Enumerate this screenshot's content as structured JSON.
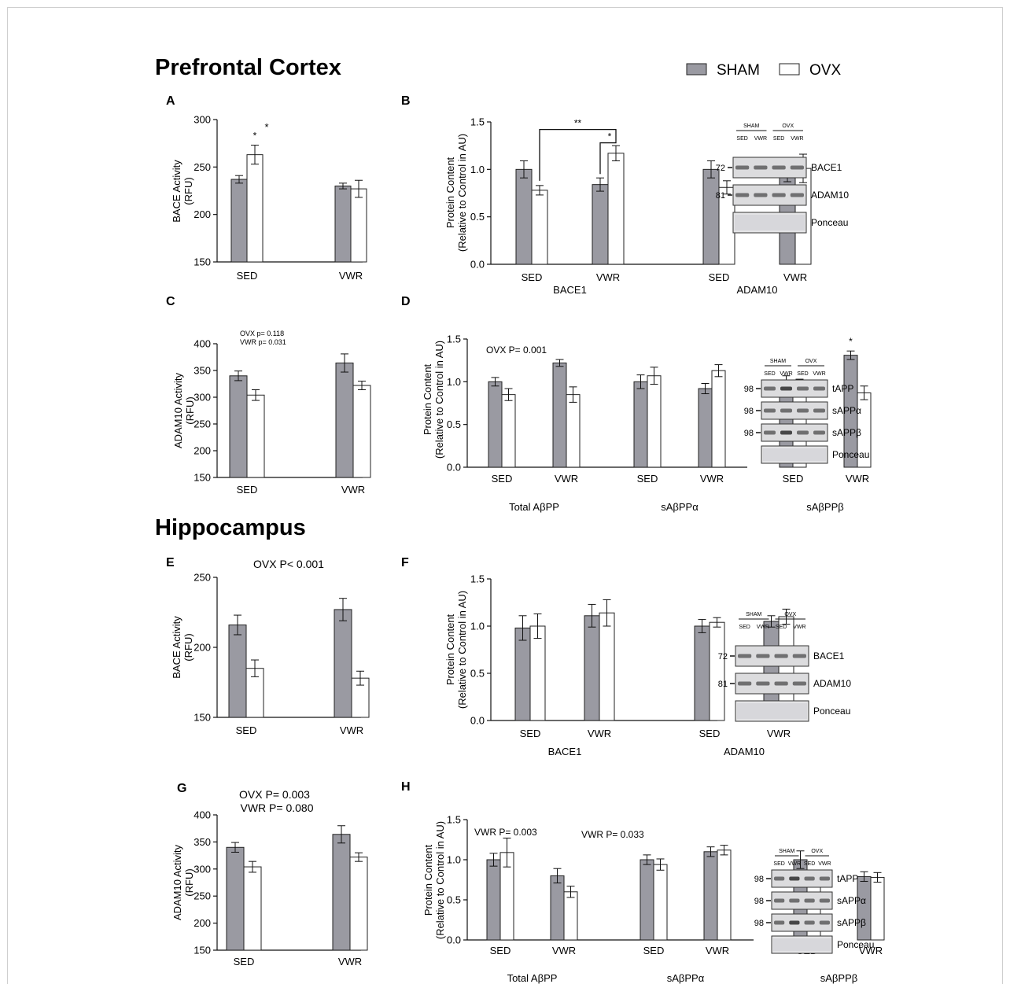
{
  "figure": {
    "sections": [
      {
        "id": "pfc",
        "title": "Prefrontal Cortex"
      },
      {
        "id": "hip",
        "title": "Hippocampus"
      }
    ],
    "legend": [
      {
        "name": "SHAM",
        "color": "#9a9aa2"
      },
      {
        "name": "OVX",
        "color": "#ffffff"
      }
    ],
    "colors": {
      "sham": "#9a9aa2",
      "ovx": "#ffffff",
      "stroke": "#222222"
    }
  },
  "chart_data": [
    {
      "panel": "A",
      "type": "bar",
      "ylabel": [
        "BACE Activity",
        "(RFU)"
      ],
      "ylim": [
        150,
        300
      ],
      "yticks": [
        150,
        200,
        250,
        300
      ],
      "groups": [
        {
          "label": "SED",
          "sham": {
            "v": 237,
            "e": 4
          },
          "ovx": {
            "v": 263,
            "e": 10
          }
        },
        {
          "label": "VWR",
          "sham": {
            "v": 230,
            "e": 3
          },
          "ovx": {
            "v": 227,
            "e": 9
          }
        }
      ],
      "annotations": [
        "*"
      ],
      "significance": [
        {
          "label": "*",
          "group": 0,
          "series": "ovx"
        }
      ]
    },
    {
      "panel": "B",
      "type": "bar",
      "ylabel": [
        "Protein Content",
        "(Relative to Control in AU)"
      ],
      "ylim": [
        0,
        1.5
      ],
      "yticks": [
        0.0,
        0.5,
        1.0,
        1.5
      ],
      "groups": [
        {
          "label": "SED",
          "sham": {
            "v": 1.0,
            "e": 0.09
          },
          "ovx": {
            "v": 0.78,
            "e": 0.05
          }
        },
        {
          "label": "VWR",
          "sham": {
            "v": 0.84,
            "e": 0.07
          },
          "ovx": {
            "v": 1.17,
            "e": 0.08
          }
        },
        {
          "label": "SED",
          "sham": {
            "v": 1.0,
            "e": 0.09
          },
          "ovx": {
            "v": 0.81,
            "e": 0.07
          }
        },
        {
          "label": "VWR",
          "sham": {
            "v": 0.96,
            "e": 0.09
          },
          "ovx": {
            "v": 1.01,
            "e": 0.15
          }
        }
      ],
      "supergroups": [
        "BACE1",
        "ADAM10"
      ],
      "brackets": [
        "**",
        "*"
      ],
      "blot": {
        "header": [
          "SHAM",
          "OVX"
        ],
        "lanes": [
          "SED",
          "VWR",
          "SED",
          "VWR"
        ],
        "bands": [
          {
            "name": "BACE1",
            "mw": "72"
          },
          {
            "name": "ADAM10",
            "mw": "81"
          },
          {
            "name": "Ponceau",
            "mw": ""
          }
        ]
      }
    },
    {
      "panel": "C",
      "type": "bar",
      "ylabel": [
        "ADAM10 Activity",
        "(RFU)"
      ],
      "ylim": [
        150,
        400
      ],
      "yticks": [
        150,
        200,
        250,
        300,
        350,
        400
      ],
      "groups": [
        {
          "label": "SED",
          "sham": {
            "v": 340,
            "e": 9
          },
          "ovx": {
            "v": 304,
            "e": 10
          }
        },
        {
          "label": "VWR",
          "sham": {
            "v": 364,
            "e": 17
          },
          "ovx": {
            "v": 322,
            "e": 8
          }
        }
      ],
      "annotations": [
        "OVX p= 0.118",
        "VWR p= 0.031"
      ]
    },
    {
      "panel": "D",
      "type": "bar",
      "ylabel": [
        "Protein Content",
        "(Relative to Control in AU)"
      ],
      "ylim": [
        0,
        1.5
      ],
      "yticks": [
        0.0,
        0.5,
        1.0,
        1.5
      ],
      "groups": [
        {
          "label": "SED",
          "sham": {
            "v": 1.0,
            "e": 0.05
          },
          "ovx": {
            "v": 0.85,
            "e": 0.07
          }
        },
        {
          "label": "VWR",
          "sham": {
            "v": 1.22,
            "e": 0.04
          },
          "ovx": {
            "v": 0.85,
            "e": 0.09
          }
        },
        {
          "label": "SED",
          "sham": {
            "v": 1.0,
            "e": 0.08
          },
          "ovx": {
            "v": 1.07,
            "e": 0.1
          }
        },
        {
          "label": "VWR",
          "sham": {
            "v": 0.92,
            "e": 0.06
          },
          "ovx": {
            "v": 1.13,
            "e": 0.07
          }
        },
        {
          "label": "SED",
          "sham": {
            "v": 1.0,
            "e": 0.07
          },
          "ovx": {
            "v": 0.95,
            "e": 0.08
          }
        },
        {
          "label": "VWR",
          "sham": {
            "v": 1.31,
            "e": 0.05
          },
          "ovx": {
            "v": 0.87,
            "e": 0.08
          }
        }
      ],
      "supergroups": [
        "Total AβPP",
        "sAβPPα",
        "sAβPPβ"
      ],
      "annotations": [
        "OVX P= 0.001",
        "*"
      ],
      "significance": [
        {
          "label": "*",
          "group": 5,
          "series": "sham"
        }
      ],
      "blot": {
        "header": [
          "SHAM",
          "OVX"
        ],
        "lanes": [
          "SED",
          "VWR",
          "SED",
          "VWR"
        ],
        "bands": [
          {
            "name": "tAPP",
            "mw": "98"
          },
          {
            "name": "sAPPα",
            "mw": "98"
          },
          {
            "name": "sAPPβ",
            "mw": "98"
          },
          {
            "name": "Ponceau",
            "mw": ""
          }
        ]
      }
    },
    {
      "panel": "E",
      "type": "bar",
      "ylabel": [
        "BACE Activity",
        "(RFU)"
      ],
      "ylim": [
        150,
        250
      ],
      "yticks": [
        150,
        200,
        250
      ],
      "groups": [
        {
          "label": "SED",
          "sham": {
            "v": 216,
            "e": 7
          },
          "ovx": {
            "v": 185,
            "e": 6
          }
        },
        {
          "label": "VWR",
          "sham": {
            "v": 227,
            "e": 8
          },
          "ovx": {
            "v": 178,
            "e": 5
          }
        }
      ],
      "annotations": [
        "OVX P< 0.001"
      ]
    },
    {
      "panel": "F",
      "type": "bar",
      "ylabel": [
        "Protein Content",
        "(Relative to Control in AU)"
      ],
      "ylim": [
        0,
        1.5
      ],
      "yticks": [
        0.0,
        0.5,
        1.0,
        1.5
      ],
      "groups": [
        {
          "label": "SED",
          "sham": {
            "v": 0.98,
            "e": 0.13
          },
          "ovx": {
            "v": 1.0,
            "e": 0.13
          }
        },
        {
          "label": "VWR",
          "sham": {
            "v": 1.11,
            "e": 0.12
          },
          "ovx": {
            "v": 1.14,
            "e": 0.14
          }
        },
        {
          "label": "SED",
          "sham": {
            "v": 1.0,
            "e": 0.07
          },
          "ovx": {
            "v": 1.04,
            "e": 0.05
          }
        },
        {
          "label": "VWR",
          "sham": {
            "v": 1.05,
            "e": 0.06
          },
          "ovx": {
            "v": 1.1,
            "e": 0.08
          }
        }
      ],
      "supergroups": [
        "BACE1",
        "ADAM10"
      ],
      "blot": {
        "header": [
          "SHAM",
          "OVX"
        ],
        "lanes": [
          "SED",
          "VWR",
          "SED",
          "VWR"
        ],
        "bands": [
          {
            "name": "BACE1",
            "mw": "72"
          },
          {
            "name": "ADAM10",
            "mw": "81"
          },
          {
            "name": "Ponceau",
            "mw": ""
          }
        ]
      }
    },
    {
      "panel": "G",
      "type": "bar",
      "ylabel": [
        "ADAM10 Activity",
        "(RFU)"
      ],
      "ylim": [
        150,
        400
      ],
      "yticks": [
        150,
        200,
        250,
        300,
        350,
        400
      ],
      "groups": [
        {
          "label": "SED",
          "sham": {
            "v": 340,
            "e": 9
          },
          "ovx": {
            "v": 304,
            "e": 10
          }
        },
        {
          "label": "VWR",
          "sham": {
            "v": 364,
            "e": 16
          },
          "ovx": {
            "v": 322,
            "e": 8
          }
        }
      ],
      "annotations": [
        "OVX P= 0.003",
        "VWR P= 0.080"
      ]
    },
    {
      "panel": "H",
      "type": "bar",
      "ylabel": [
        "Protein Content",
        "(Relative to Control in AU)"
      ],
      "ylim": [
        0,
        1.5
      ],
      "yticks": [
        0.0,
        0.5,
        1.0,
        1.5
      ],
      "groups": [
        {
          "label": "SED",
          "sham": {
            "v": 1.0,
            "e": 0.08
          },
          "ovx": {
            "v": 1.09,
            "e": 0.18
          }
        },
        {
          "label": "VWR",
          "sham": {
            "v": 0.8,
            "e": 0.09
          },
          "ovx": {
            "v": 0.6,
            "e": 0.07
          }
        },
        {
          "label": "SED",
          "sham": {
            "v": 1.0,
            "e": 0.06
          },
          "ovx": {
            "v": 0.94,
            "e": 0.07
          }
        },
        {
          "label": "VWR",
          "sham": {
            "v": 1.1,
            "e": 0.06
          },
          "ovx": {
            "v": 1.12,
            "e": 0.06
          }
        },
        {
          "label": "SED",
          "sham": {
            "v": 1.0,
            "e": 0.11
          },
          "ovx": {
            "v": 0.77,
            "e": 0.05
          }
        },
        {
          "label": "VWR",
          "sham": {
            "v": 0.79,
            "e": 0.06
          },
          "ovx": {
            "v": 0.78,
            "e": 0.06
          }
        }
      ],
      "supergroups": [
        "Total AβPP",
        "sAβPPα",
        "sAβPPβ"
      ],
      "annotations": [
        "VWR P= 0.003",
        "VWR P= 0.033"
      ],
      "blot": {
        "header": [
          "SHAM",
          "OVX"
        ],
        "lanes": [
          "SED",
          "VWR",
          "SED",
          "VWR"
        ],
        "bands": [
          {
            "name": "tAPP",
            "mw": "98"
          },
          {
            "name": "sAPPα",
            "mw": "98"
          },
          {
            "name": "sAPPβ",
            "mw": "98"
          },
          {
            "name": "Ponceau",
            "mw": ""
          }
        ]
      }
    }
  ]
}
